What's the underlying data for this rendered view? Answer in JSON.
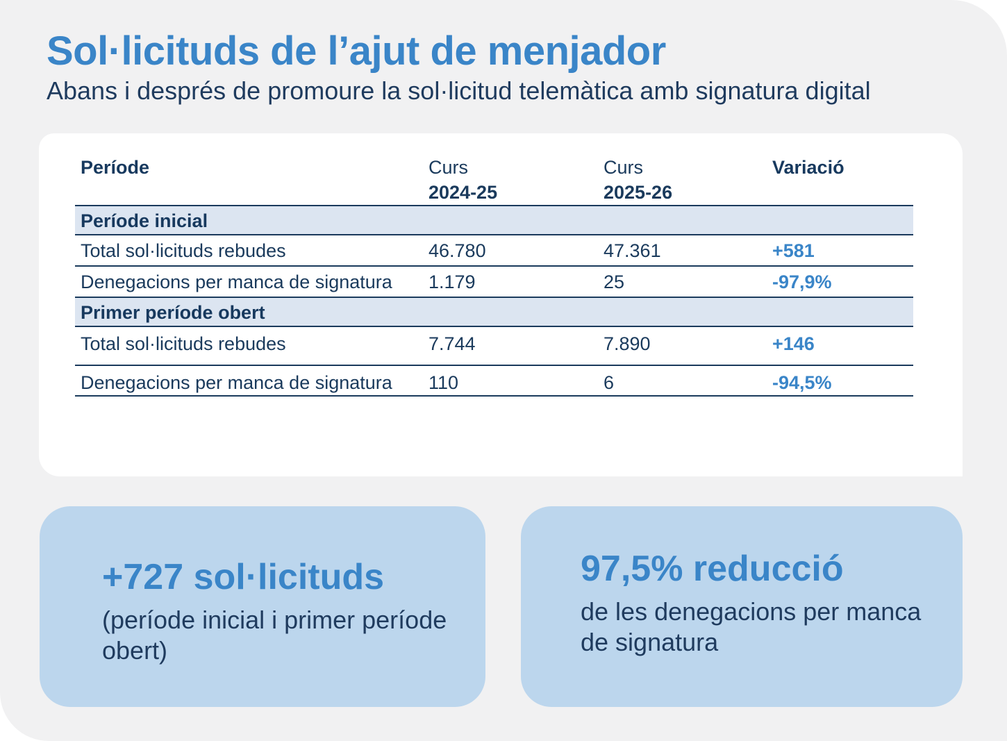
{
  "title": "Sol·licituds de l’ajut de menjador",
  "subtitle": "Abans i després de promoure la sol·licitud telemàtica amb signatura digital",
  "table": {
    "headers": {
      "periode": "Període",
      "curs1_label": "Curs",
      "curs1_year": "2024-25",
      "curs2_label": "Curs",
      "curs2_year": "2025-26",
      "variacio": "Variació"
    },
    "sections": [
      {
        "name": "Període inicial",
        "rows": [
          {
            "label": "Total sol·licituds rebudes",
            "v1": "46.780",
            "v2": "47.361",
            "var": "+581"
          },
          {
            "label": "Denegacions per manca de signatura",
            "v1": "1.179",
            "v2": "25",
            "var": "-97,9%"
          }
        ]
      },
      {
        "name": "Primer període obert",
        "rows": [
          {
            "label": "Total sol·licituds rebudes",
            "v1": "7.744",
            "v2": "7.890",
            "var": "+146"
          },
          {
            "label": "Denegacions per manca de signatura",
            "v1": "110",
            "v2": "6",
            "var": "-94,5%"
          }
        ]
      }
    ]
  },
  "highlights": [
    {
      "big": "+727 sol·licituds",
      "small": "(període inicial i primer període obert)"
    },
    {
      "big": "97,5% reducció",
      "small": "de les denegacions per manca de signatura"
    }
  ],
  "colors": {
    "accent": "#3a85c8",
    "dark": "#1a3a5c",
    "section_bg": "#dce5f1",
    "box_bg": "#bcd6ed",
    "page_bg": "#f1f1f2"
  }
}
